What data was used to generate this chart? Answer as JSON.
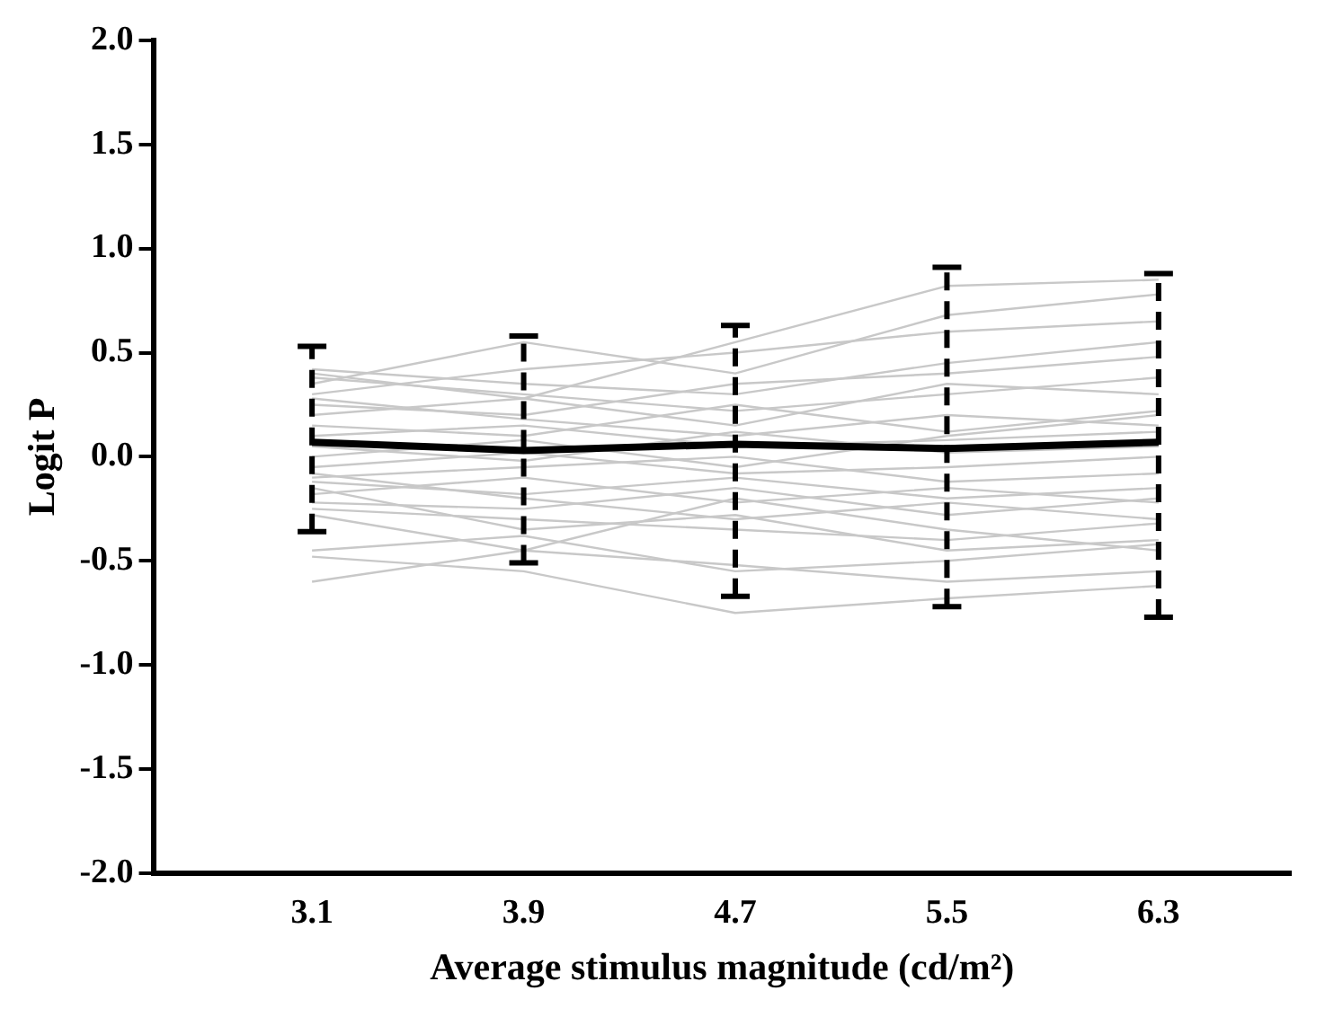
{
  "chart_data": {
    "type": "line",
    "xlabel": "Average stimulus magnitude (cd/m²)",
    "ylabel": "Logit P",
    "x": [
      3.1,
      3.9,
      4.7,
      5.5,
      6.3
    ],
    "xlim": [
      2.5,
      6.8
    ],
    "xticks": [
      3.1,
      3.9,
      4.7,
      5.5,
      6.3
    ],
    "ylim": [
      -2,
      2
    ],
    "yticks": [
      {
        "value": -2,
        "label": "-2.0"
      },
      {
        "value": -1.5,
        "label": "-1.5"
      },
      {
        "value": -1,
        "label": "-1.0"
      },
      {
        "value": -0.5,
        "label": "-0.5"
      },
      {
        "value": 0,
        "label": "0.0"
      },
      {
        "value": 0.5,
        "label": "0.5"
      },
      {
        "value": 1,
        "label": "1.0"
      },
      {
        "value": 1.5,
        "label": "1.5"
      },
      {
        "value": 2,
        "label": "2.0"
      }
    ],
    "grid": false,
    "legend": false,
    "marker": "none",
    "line_style": "solid",
    "series": [
      {
        "color": "#c8c8c8",
        "values": [
          0.4,
          0.28,
          0.55,
          0.82,
          0.85
        ]
      },
      {
        "color": "#c8c8c8",
        "values": [
          0.35,
          0.55,
          0.4,
          0.68,
          0.78
        ]
      },
      {
        "color": "#c8c8c8",
        "values": [
          0.3,
          0.42,
          0.5,
          0.6,
          0.65
        ]
      },
      {
        "color": "#c8c8c8",
        "values": [
          0.42,
          0.35,
          0.3,
          0.45,
          0.55
        ]
      },
      {
        "color": "#c8c8c8",
        "values": [
          0.25,
          0.2,
          0.35,
          0.4,
          0.48
        ]
      },
      {
        "color": "#c8c8c8",
        "values": [
          0.38,
          0.3,
          0.22,
          0.3,
          0.38
        ]
      },
      {
        "color": "#c8c8c8",
        "values": [
          0.2,
          0.28,
          0.15,
          0.35,
          0.3
        ]
      },
      {
        "color": "#c8c8c8",
        "values": [
          0.15,
          0.1,
          0.25,
          0.12,
          0.22
        ]
      },
      {
        "color": "#c8c8c8",
        "values": [
          0.28,
          0.18,
          0.1,
          0.2,
          0.15
        ]
      },
      {
        "color": "#c8c8c8",
        "values": [
          0.1,
          0.15,
          0.05,
          0.08,
          0.12
        ]
      },
      {
        "color": "#c8c8c8",
        "values": [
          0.05,
          -0.02,
          0.12,
          0.02,
          0.05
        ]
      },
      {
        "color": "#c8c8c8",
        "values": [
          -0.05,
          0.02,
          -0.08,
          -0.05,
          0.0
        ]
      },
      {
        "color": "#c8c8c8",
        "values": [
          -0.1,
          -0.05,
          0.0,
          -0.12,
          -0.08
        ]
      },
      {
        "color": "#c8c8c8",
        "values": [
          -0.12,
          -0.18,
          -0.1,
          -0.2,
          -0.15
        ]
      },
      {
        "color": "#c8c8c8",
        "values": [
          -0.18,
          -0.1,
          -0.22,
          -0.15,
          -0.22
        ]
      },
      {
        "color": "#c8c8c8",
        "values": [
          -0.22,
          -0.25,
          -0.15,
          -0.28,
          -0.2
        ]
      },
      {
        "color": "#c8c8c8",
        "values": [
          -0.08,
          -0.2,
          -0.3,
          -0.22,
          -0.3
        ]
      },
      {
        "color": "#c8c8c8",
        "values": [
          -0.25,
          -0.3,
          -0.35,
          -0.4,
          -0.32
        ]
      },
      {
        "color": "#c8c8c8",
        "values": [
          -0.15,
          -0.35,
          -0.28,
          -0.45,
          -0.4
        ]
      },
      {
        "color": "#c8c8c8",
        "values": [
          -0.28,
          -0.45,
          -0.2,
          -0.35,
          -0.45
        ]
      },
      {
        "color": "#c8c8c8",
        "values": [
          -0.45,
          -0.38,
          -0.55,
          -0.5,
          -0.42
        ]
      },
      {
        "color": "#c8c8c8",
        "values": [
          -0.6,
          -0.45,
          -0.52,
          -0.6,
          -0.55
        ]
      },
      {
        "color": "#c8c8c8",
        "values": [
          -0.48,
          -0.55,
          -0.75,
          -0.68,
          -0.62
        ]
      },
      {
        "color": "#c8c8c8",
        "values": [
          0.0,
          0.08,
          -0.05,
          0.1,
          0.2
        ]
      },
      {
        "color": "#000000",
        "values": [
          0.07,
          0.03,
          0.06,
          0.04,
          0.07
        ],
        "errors": [
          [
            -0.36,
            0.53
          ],
          [
            -0.51,
            0.58
          ],
          [
            -0.67,
            0.63
          ],
          [
            -0.72,
            0.91
          ],
          [
            -0.77,
            0.88
          ]
        ]
      }
    ]
  }
}
